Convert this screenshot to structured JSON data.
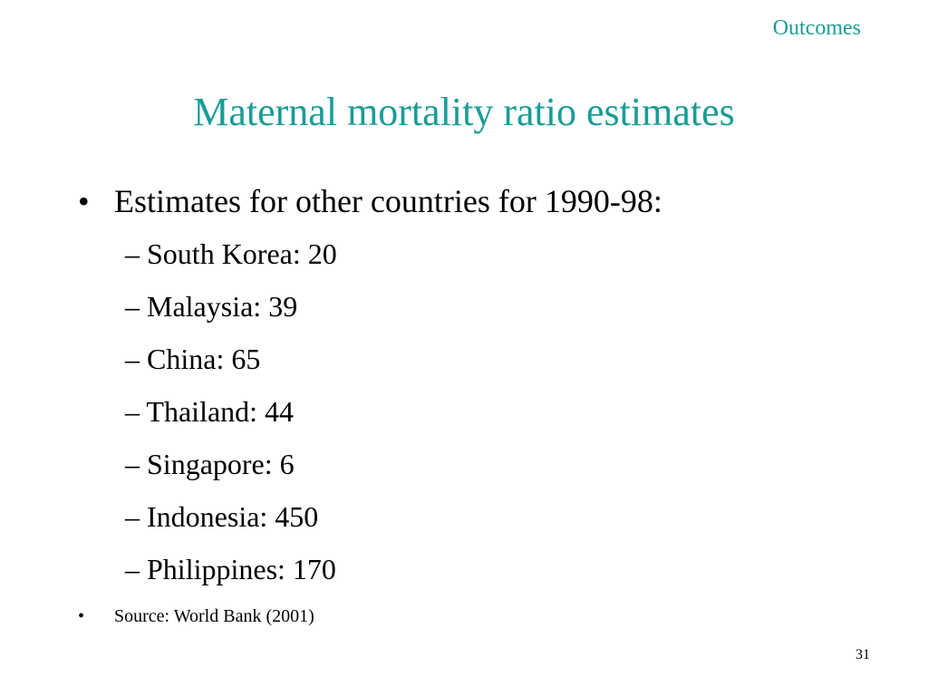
{
  "header": {
    "section_label": "Outcomes",
    "title": "Maternal mortality ratio estimates"
  },
  "content": {
    "main_bullet": "Estimates for other countries for 1990-98:",
    "bullet_glyph": "•",
    "sub_items": [
      "– South Korea: 20",
      "– Malaysia: 39",
      "– China: 65",
      "– Thailand: 44",
      "– Singapore: 6",
      "– Indonesia: 450",
      "– Philippines: 170"
    ],
    "source_bullet": "Source: World Bank (2001)"
  },
  "footer": {
    "page_number": "31"
  },
  "colors": {
    "accent": "#1a9c96",
    "text": "#000000",
    "background": "#ffffff"
  }
}
